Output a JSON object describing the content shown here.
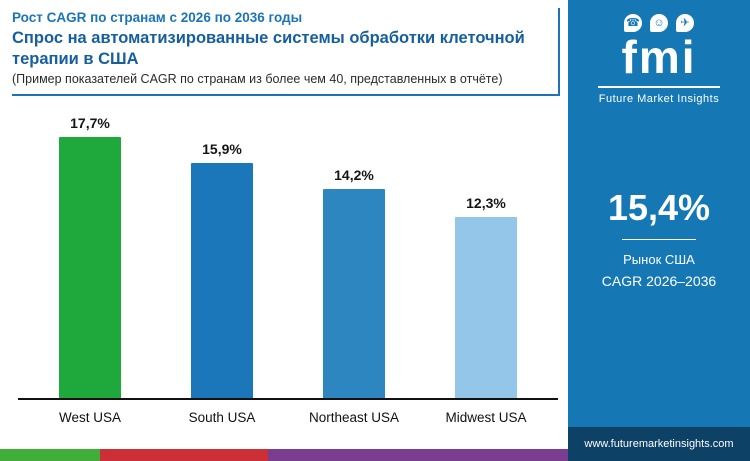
{
  "header": {
    "line1": "Рост CAGR по странам с 2026 по 2036 годы",
    "title": "Спрос на автоматизированные системы обработки клеточной терапии в США",
    "note": "(Пример показателей CAGR по странам из более чем 40, представленных в отчёте)"
  },
  "chart_data": {
    "type": "bar",
    "categories": [
      "West USA",
      "South USA",
      "Northeast USA",
      "Midwest USA"
    ],
    "values": [
      17.7,
      15.9,
      14.2,
      12.3
    ],
    "value_labels": [
      "17,7%",
      "15,9%",
      "14,2%",
      "12,3%"
    ],
    "bar_colors": [
      "#1fa93c",
      "#1b76ba",
      "#2e86c1",
      "#93c6e8"
    ],
    "title": "Спрос на автоматизированные системы обработки клеточной терапии в США",
    "subtitle": "Рост CAGR по странам с 2026 по 2036 годы",
    "xlabel": "",
    "ylabel": "",
    "ylim": [
      0,
      19.5
    ],
    "grid": false,
    "legend": false
  },
  "sidebar": {
    "logo_text": "fmi",
    "logo_subtext": "Future Market Insights",
    "logo_icons": [
      "☎",
      "☺",
      "✈"
    ],
    "stat_value": "15,4%",
    "stat_label1": "Рынок США",
    "stat_label2": "CAGR 2026–2036",
    "website": "www.futuremarketinsights.com",
    "colors": {
      "bg": "#1578b5",
      "footer_bg": "#0e4166"
    }
  },
  "footer_strip_colors": [
    "#3faf3a",
    "#cc2f36",
    "#7b3d90"
  ],
  "accent_color": "#1b74b8"
}
